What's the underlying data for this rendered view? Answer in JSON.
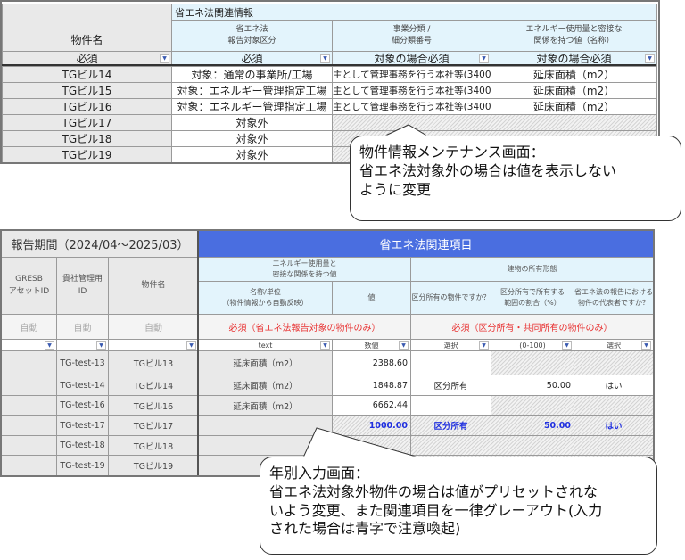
{
  "top": {
    "section_title": "省エネ法関連情報",
    "headers": {
      "name": "物件名",
      "c1": "省エネ法\n報告対象区分",
      "c2": "事業分類 /\n細分類番号",
      "c3": "エネルギー使用量と密接な\n関係を持つ値（名称）"
    },
    "filters": {
      "name": "必須",
      "c1": "必須",
      "c2": "対象の場合必須",
      "c3": "対象の場合必須"
    },
    "rows": [
      {
        "name": "TGビル14",
        "c1": "対象：通常の事業所/工場",
        "c2": "主として管理事務を行う本社等(3400)",
        "c3": "延床面積（m2）"
      },
      {
        "name": "TGビル15",
        "c1": "対象：エネルギー管理指定工場",
        "c2": "主として管理事務を行う本社等(3400)",
        "c3": "延床面積（m2）"
      },
      {
        "name": "TGビル16",
        "c1": "対象：エネルギー管理指定工場",
        "c2": "主として管理事務を行う本社等(3400)",
        "c3": "延床面積（m2）"
      },
      {
        "name": "TGビル17",
        "c1": "対象外",
        "c2": "",
        "c3": ""
      },
      {
        "name": "TGビル18",
        "c1": "対象外",
        "c2": "",
        "c3": ""
      },
      {
        "name": "TGビル19",
        "c1": "対象外",
        "c2": "",
        "c3": ""
      }
    ]
  },
  "callout1": {
    "line1": "物件情報メンテナンス画面：",
    "line2": "省エネ法対象外の場合は値を表示しない\nように変更"
  },
  "bottom": {
    "period": "報告期間（2024/04～2025/03）",
    "section_title": "省エネ法関連項目",
    "section_color": "#4a6ee0",
    "headers": {
      "gresb": "GRESB\nアセットID",
      "mgmt": "貴社管理用\nID",
      "name": "物件名",
      "group1": "エネルギー使用量と\n密接な関係を持つ値",
      "group2": "建物の所有形態",
      "c1": "名称/単位\n（物件情報から自動反映）",
      "c2": "値",
      "c3": "区分所有の物件ですか？",
      "c4": "区分所有で所有する\n範囲の割合（%）",
      "c5": "省エネ法の報告における\n物件の代表者ですか？"
    },
    "auto": "自動",
    "req1": "必須（省エネ法報告対象の物件のみ）",
    "req2": "必須（区分所有・共同所有の物件のみ）",
    "filters": {
      "c1": "text",
      "c2": "数値",
      "c3": "選択",
      "c4": "(0-100)",
      "c5": "選択"
    },
    "rows": [
      {
        "mgmt": "TG-test-13",
        "name": "TGビル13",
        "c1": "延床面積（m2）",
        "c2": "2388.60",
        "c3": "",
        "c4": "",
        "c5": ""
      },
      {
        "mgmt": "TG-test-14",
        "name": "TGビル14",
        "c1": "延床面積（m2）",
        "c2": "1848.87",
        "c3": "区分所有",
        "c4": "50.00",
        "c5": "はい"
      },
      {
        "mgmt": "TG-test-16",
        "name": "TGビル16",
        "c1": "延床面積（m2）",
        "c2": "6662.44",
        "c3": "",
        "c4": "",
        "c5": ""
      },
      {
        "mgmt": "TG-test-17",
        "name": "TGビル17",
        "c1": "",
        "c2": "1000.00",
        "c3": "区分所有",
        "c4": "50.00",
        "c5": "はい"
      },
      {
        "mgmt": "TG-test-18",
        "name": "TGビル18",
        "c1": "",
        "c2": "",
        "c3": "",
        "c4": "",
        "c5": ""
      },
      {
        "mgmt": "TG-test-19",
        "name": "TGビル19",
        "c1": "",
        "c2": "",
        "c3": "",
        "c4": "",
        "c5": ""
      }
    ]
  },
  "callout2": {
    "line1": "年別入力画面：",
    "line2": "省エネ法対象外物件の場合は値がプリセットされな\nいよう変更、また関連項目を一律グレーアウト(入力\nされた場合は青字で注意喚起)"
  }
}
